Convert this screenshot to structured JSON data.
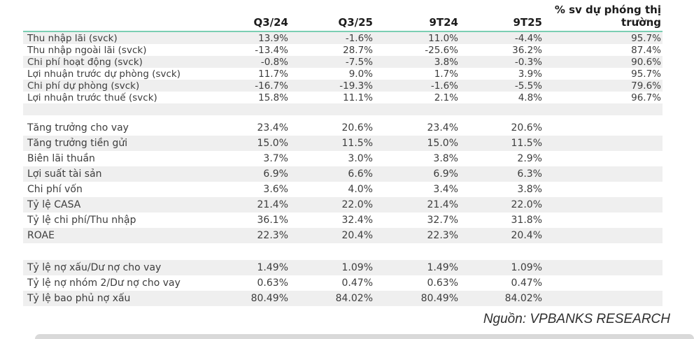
{
  "colors": {
    "accent_line": "#7bceb2",
    "stripe": "#efefef",
    "header_text": "#1c1c1c",
    "body_text": "#3d3d3d"
  },
  "header": {
    "c1": "Q3/24",
    "c2": "Q3/25",
    "c3": "9T24",
    "c4": "9T25",
    "c5_line1": "% sv dự phóng thị",
    "c5_line2": "trường"
  },
  "source_note": "Nguồn: VPBANKS RESEARCH",
  "chart_data": {
    "type": "table",
    "title": "",
    "columns": [
      "",
      "Q3/24",
      "Q3/25",
      "9T24",
      "9T25",
      "% sv dự phóng thị trường"
    ],
    "sections": [
      {
        "name": "income-statement-growth",
        "first_row_shaded": true,
        "rows": [
          {
            "label": "Thu nhập lãi (svck)",
            "values": [
              "13.9%",
              "-1.6%",
              "11.0%",
              "-4.4%",
              "95.7%"
            ]
          },
          {
            "label": "Thu nhập ngoài lãi (svck)",
            "values": [
              "-13.4%",
              "28.7%",
              "-25.6%",
              "36.2%",
              "87.4%"
            ]
          },
          {
            "label": "Chi phí hoạt động (svck)",
            "values": [
              "-0.8%",
              "-7.5%",
              "3.8%",
              "-0.3%",
              "90.6%"
            ]
          },
          {
            "label": "Lợi nhuận trước dự phòng (svck)",
            "values": [
              "11.7%",
              "9.0%",
              "1.7%",
              "3.9%",
              "95.7%"
            ]
          },
          {
            "label": "Chi phí dự phòng (svck)",
            "values": [
              "-16.7%",
              "-19.3%",
              "-1.6%",
              "-5.5%",
              "79.6%"
            ]
          },
          {
            "label": "Lợi nhuận trước thuế (svck)",
            "values": [
              "15.8%",
              "11.1%",
              "2.1%",
              "4.8%",
              "96.7%"
            ]
          }
        ]
      },
      {
        "name": "operating-ratios",
        "first_row_shaded": false,
        "rows": [
          {
            "label": "Tăng trưởng cho vay",
            "values": [
              "23.4%",
              "20.6%",
              "23.4%",
              "20.6%"
            ]
          },
          {
            "label": "Tăng trưởng tiền gửi",
            "values": [
              "15.0%",
              "11.5%",
              "15.0%",
              "11.5%"
            ]
          },
          {
            "label": "Biên lãi thuần",
            "values": [
              "3.7%",
              "3.0%",
              "3.8%",
              "2.9%"
            ]
          },
          {
            "label": "Lợi suất tài sản",
            "values": [
              "6.9%",
              "6.6%",
              "6.9%",
              "6.3%"
            ]
          },
          {
            "label": "Chi phí vốn",
            "values": [
              "3.6%",
              "4.0%",
              "3.4%",
              "3.8%"
            ]
          },
          {
            "label": "Tỷ lệ CASA",
            "values": [
              "21.4%",
              "22.0%",
              "21.4%",
              "22.0%"
            ]
          },
          {
            "label": "Tỷ lệ chi phí/Thu nhập",
            "values": [
              "36.1%",
              "32.4%",
              "32.7%",
              "31.8%"
            ]
          },
          {
            "label": "ROAE",
            "values": [
              "22.3%",
              "20.4%",
              "22.3%",
              "20.4%"
            ]
          }
        ]
      },
      {
        "name": "asset-quality",
        "first_row_shaded": true,
        "rows": [
          {
            "label": "Tỷ lệ nợ xấu/Dư nợ cho vay",
            "values": [
              "1.49%",
              "1.09%",
              "1.49%",
              "1.09%"
            ]
          },
          {
            "label": "Tỷ lệ nợ nhóm 2/Dư nợ cho vay",
            "values": [
              "0.63%",
              "0.47%",
              "0.63%",
              "0.47%"
            ]
          },
          {
            "label": "Tỷ lệ bao phủ nợ xấu",
            "values": [
              "80.49%",
              "84.02%",
              "80.49%",
              "84.02%"
            ]
          }
        ]
      }
    ]
  }
}
